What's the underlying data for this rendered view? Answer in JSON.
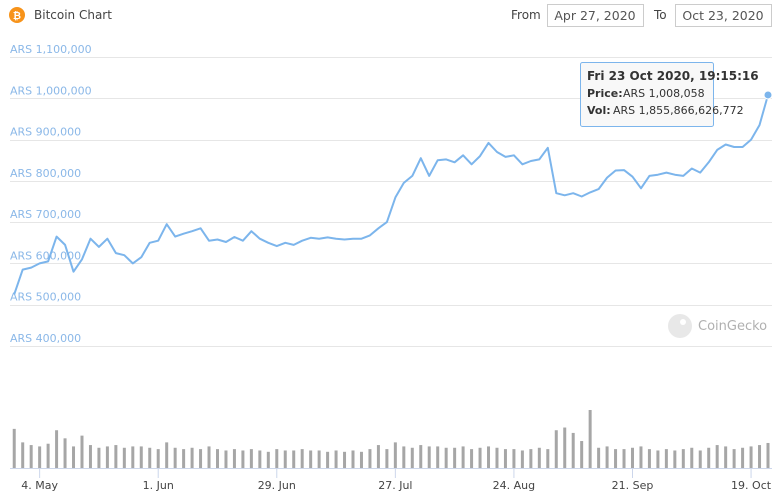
{
  "header": {
    "title": "Bitcoin Chart",
    "from_label": "From",
    "from": "Apr 27, 2020",
    "to_label": "To",
    "to": "Oct 23, 2020"
  },
  "watermark": "CoinGecko",
  "tooltip": {
    "date": "Fri 23 Oct 2020, 19:15:16",
    "price_label": "Price:",
    "price": "ARS 1,008,058",
    "vol_label": "Vol:",
    "vol": "ARS 1,855,866,626,772"
  },
  "chart_data": {
    "type": "line",
    "color": "#7cb5ec",
    "volume_color": "#a6a6a6",
    "grid": true,
    "categories": [
      null,
      null,
      null,
      "4. May",
      null,
      null,
      null,
      null,
      null,
      null,
      null,
      null,
      null,
      null,
      null,
      null,
      null,
      "1. Jun",
      null,
      null,
      null,
      null,
      null,
      null,
      null,
      null,
      null,
      null,
      null,
      null,
      null,
      "29. Jun",
      null,
      null,
      null,
      null,
      null,
      null,
      null,
      null,
      null,
      null,
      null,
      null,
      null,
      "27. Jul",
      null,
      null,
      null,
      null,
      null,
      null,
      null,
      null,
      null,
      null,
      null,
      null,
      null,
      "24. Aug",
      null,
      null,
      null,
      null,
      null,
      null,
      null,
      null,
      null,
      null,
      null,
      null,
      null,
      "21. Sep",
      null,
      null,
      null,
      null,
      null,
      null,
      null,
      null,
      null,
      null,
      null,
      null,
      null,
      "19. Oct",
      null,
      null
    ],
    "values": [
      525000,
      585000,
      590000,
      600000,
      605000,
      665000,
      645000,
      580000,
      610000,
      660000,
      640000,
      660000,
      625000,
      620000,
      600000,
      615000,
      650000,
      655000,
      695000,
      665000,
      672000,
      678000,
      685000,
      655000,
      658000,
      652000,
      664000,
      655000,
      678000,
      660000,
      650000,
      642000,
      650000,
      645000,
      655000,
      662000,
      660000,
      663000,
      660000,
      658000,
      660000,
      660000,
      668000,
      685000,
      700000,
      760000,
      795000,
      812000,
      855000,
      812000,
      850000,
      852000,
      845000,
      862000,
      840000,
      860000,
      892000,
      870000,
      858000,
      862000,
      840000,
      848000,
      852000,
      880000,
      770000,
      765000,
      770000,
      762000,
      772000,
      780000,
      808000,
      825000,
      826000,
      810000,
      782000,
      812000,
      815000,
      820000,
      815000,
      812000,
      830000,
      820000,
      845000,
      875000,
      888000,
      882000,
      882000,
      900000,
      935000,
      1008058
    ],
    "volume": [
      2900000000000.0,
      1900000000000.0,
      1700000000000.0,
      1600000000000.0,
      1800000000000.0,
      2800000000000.0,
      2200000000000.0,
      1600000000000.0,
      2400000000000.0,
      1700000000000.0,
      1500000000000.0,
      1600000000000.0,
      1700000000000.0,
      1500000000000.0,
      1600000000000.0,
      1600000000000.0,
      1500000000000.0,
      1400000000000.0,
      1900000000000.0,
      1500000000000.0,
      1400000000000.0,
      1500000000000.0,
      1400000000000.0,
      1600000000000.0,
      1400000000000.0,
      1300000000000.0,
      1400000000000.0,
      1300000000000.0,
      1400000000000.0,
      1300000000000.0,
      1200000000000.0,
      1400000000000.0,
      1300000000000.0,
      1300000000000.0,
      1400000000000.0,
      1300000000000.0,
      1300000000000.0,
      1200000000000.0,
      1300000000000.0,
      1200000000000.0,
      1300000000000.0,
      1200000000000.0,
      1400000000000.0,
      1700000000000.0,
      1400000000000.0,
      1900000000000.0,
      1600000000000.0,
      1500000000000.0,
      1700000000000.0,
      1600000000000.0,
      1600000000000.0,
      1500000000000.0,
      1500000000000.0,
      1600000000000.0,
      1400000000000.0,
      1500000000000.0,
      1600000000000.0,
      1500000000000.0,
      1400000000000.0,
      1400000000000.0,
      1300000000000.0,
      1400000000000.0,
      1500000000000.0,
      1400000000000.0,
      2800000000000.0,
      3000000000000.0,
      2600000000000.0,
      2000000000000.0,
      4300000000000.0,
      1500000000000.0,
      1600000000000.0,
      1400000000000.0,
      1400000000000.0,
      1500000000000.0,
      1600000000000.0,
      1400000000000.0,
      1300000000000.0,
      1400000000000.0,
      1300000000000.0,
      1400000000000.0,
      1500000000000.0,
      1300000000000.0,
      1500000000000.0,
      1700000000000.0,
      1600000000000.0,
      1400000000000.0,
      1500000000000.0,
      1600000000000.0,
      1700000000000.0,
      1855866626772
    ],
    "ylim": [
      400000,
      1100000
    ],
    "yticks": [
      {
        "value": 400000,
        "label": "ARS 400,000"
      },
      {
        "value": 500000,
        "label": "ARS 500,000"
      },
      {
        "value": 600000,
        "label": "ARS 600,000"
      },
      {
        "value": 700000,
        "label": "ARS 700,000"
      },
      {
        "value": 800000,
        "label": "ARS 800,000"
      },
      {
        "value": 900000,
        "label": "ARS 900,000"
      },
      {
        "value": 1000000,
        "label": "ARS 1,000,000"
      },
      {
        "value": 1100000,
        "label": "ARS 1,100,000"
      }
    ]
  }
}
